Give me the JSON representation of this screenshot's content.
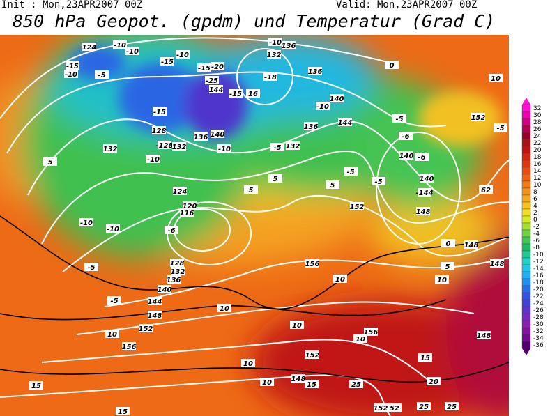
{
  "header": {
    "init": "Init : Mon,23APR2007 00Z",
    "valid": "Valid: Mon,23APR2007 00Z",
    "title": "850 hPa Geopot. (gpdm) und Temperatur (Grad C)"
  },
  "colorbar": {
    "labels": [
      32,
      30,
      28,
      26,
      24,
      22,
      20,
      18,
      16,
      14,
      12,
      10,
      8,
      6,
      4,
      2,
      0,
      -2,
      -4,
      -6,
      -8,
      -10,
      -12,
      -14,
      -16,
      -18,
      -20,
      -22,
      -24,
      -26,
      -28,
      -30,
      -32,
      -34,
      -36
    ],
    "colors": [
      "#ff10d0",
      "#ee00b0",
      "#d00088",
      "#b00050",
      "#98002c",
      "#a81414",
      "#c01410",
      "#d42412",
      "#e03412",
      "#e84c12",
      "#ee6214",
      "#f27a18",
      "#f49220",
      "#f6aa22",
      "#f6c222",
      "#f2dc22",
      "#d4ea22",
      "#a4e034",
      "#70d244",
      "#44c452",
      "#22ba66",
      "#20c894",
      "#20d2c2",
      "#20c6e4",
      "#20aef4",
      "#208ef2",
      "#2470e8",
      "#3252e0",
      "#4242d8",
      "#5e32cc",
      "#7628c0",
      "#8820b0",
      "#8212a0",
      "#700a90",
      "#520070"
    ]
  },
  "map": {
    "labels": [
      "124",
      "-10",
      "-10",
      "-15",
      "-10",
      "-5",
      "-15",
      "-10",
      "-15",
      "-20",
      "-25",
      "144",
      "-15",
      "16",
      "-18",
      "-10",
      "132",
      "136",
      "136",
      "140",
      "-10",
      "144",
      "-5",
      "152",
      "-5",
      "-15",
      "128",
      "132",
      "-128",
      "132",
      "136",
      "140",
      "-10",
      "-5",
      "132",
      "136",
      "-10",
      "5",
      "10",
      "0",
      "-6",
      "140",
      "-6",
      "140",
      "-5",
      "-5",
      "-144",
      "148",
      "152",
      "5",
      "5",
      "5",
      "124",
      "120",
      "116",
      "-6",
      "-10",
      "-10",
      "-5",
      "128",
      "132",
      "136",
      "140",
      "144",
      "148",
      "152",
      "156",
      "-5",
      "10",
      "10",
      "10",
      "10",
      "156",
      "5",
      "0",
      "148",
      "148",
      "148",
      "10",
      "10",
      "156",
      "10",
      "152",
      "10",
      "148",
      "15",
      "15",
      "20",
      "25",
      "25",
      "25",
      "152",
      "52",
      "15",
      "15",
      "62"
    ]
  }
}
